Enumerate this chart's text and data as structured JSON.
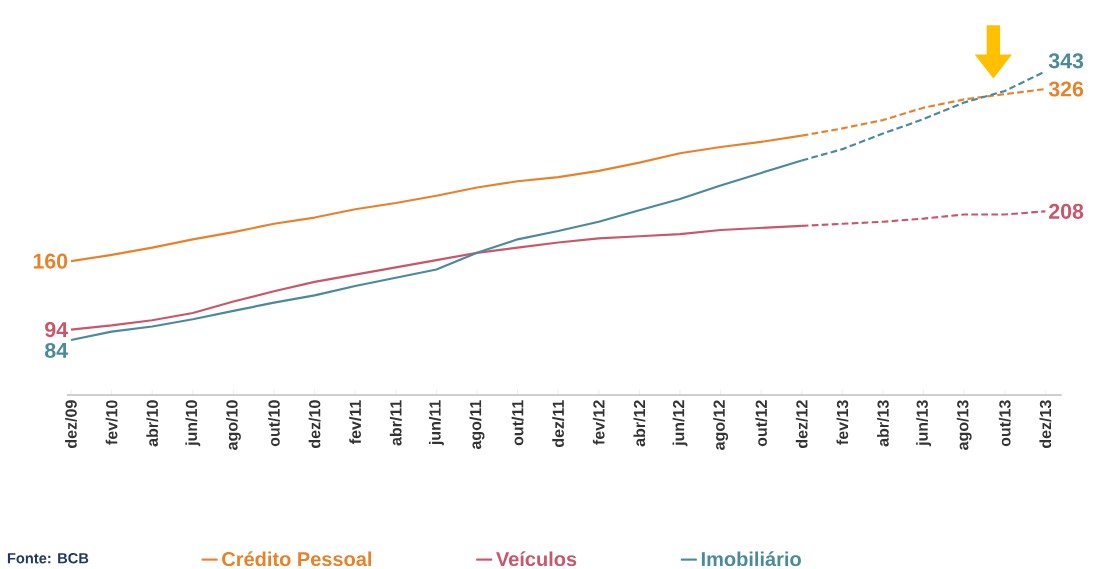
{
  "chart_data": {
    "type": "line",
    "categories": [
      "dez/09",
      "fev/10",
      "abr/10",
      "jun/10",
      "ago/10",
      "out/10",
      "dez/10",
      "fev/11",
      "abr/11",
      "jun/11",
      "ago/11",
      "out/11",
      "dez/11",
      "fev/12",
      "abr/12",
      "jun/12",
      "ago/12",
      "out/12",
      "dez/12",
      "fev/13",
      "abr/13",
      "jun/13",
      "ago/13",
      "out/13",
      "dez/13"
    ],
    "legend": "bottom",
    "marker": "none",
    "line_style": "solid",
    "grid": false,
    "annotations": [
      "Fonte: BCB"
    ],
    "series": [
      {
        "name": "Crédito Pessoal",
        "color": "#e8822a",
        "values": [
          160,
          166,
          173,
          181,
          188,
          196,
          202,
          210,
          216,
          223,
          231,
          237,
          241,
          247,
          255,
          264,
          270,
          275,
          281,
          null,
          null,
          null,
          null,
          null,
          null
        ],
        "value_labels": [
          "160",
          null,
          null,
          null,
          null,
          null,
          null,
          null,
          null,
          null,
          null,
          null,
          null,
          null,
          null,
          null,
          null,
          null,
          null,
          null,
          null,
          null,
          null,
          null,
          null
        ]
      },
      {
        "color": "#e8822a",
        "line_style": "dashed",
        "values": [
          null,
          null,
          null,
          null,
          null,
          null,
          null,
          null,
          null,
          null,
          null,
          null,
          null,
          null,
          null,
          null,
          null,
          null,
          281,
          288,
          296,
          308,
          316,
          321,
          326
        ],
        "value_labels": [
          null,
          null,
          null,
          null,
          null,
          null,
          null,
          null,
          null,
          null,
          null,
          null,
          null,
          null,
          null,
          null,
          null,
          null,
          null,
          null,
          null,
          null,
          null,
          null,
          "326"
        ]
      },
      {
        "name": "Veículos",
        "color": "#c9566a",
        "values": [
          94,
          98,
          103,
          110,
          121,
          131,
          140,
          147,
          154,
          161,
          168,
          173,
          178,
          182,
          184,
          186,
          190,
          192,
          194,
          null,
          null,
          null,
          null,
          null,
          null
        ],
        "value_labels": [
          "94",
          null,
          null,
          null,
          null,
          null,
          null,
          null,
          null,
          null,
          null,
          null,
          null,
          null,
          null,
          null,
          null,
          null,
          null,
          null,
          null,
          null,
          null,
          null,
          null
        ]
      },
      {
        "color": "#c9566a",
        "line_style": "dashed",
        "values": [
          null,
          null,
          null,
          null,
          null,
          null,
          null,
          null,
          null,
          null,
          null,
          null,
          null,
          null,
          null,
          null,
          null,
          null,
          194,
          196,
          198,
          201,
          205,
          205,
          208
        ],
        "value_labels": [
          null,
          null,
          null,
          null,
          null,
          null,
          null,
          null,
          null,
          null,
          null,
          null,
          null,
          null,
          null,
          null,
          null,
          null,
          null,
          null,
          null,
          null,
          null,
          null,
          "208"
        ]
      },
      {
        "name": "Imobiliário",
        "color": "#4a8a9b",
        "values": [
          84,
          92,
          97,
          104,
          112,
          120,
          127,
          136,
          144,
          152,
          168,
          181,
          189,
          198,
          209,
          220,
          233,
          245,
          257,
          null,
          null,
          null,
          null,
          null,
          null
        ],
        "value_labels": [
          "84",
          null,
          null,
          null,
          null,
          null,
          null,
          null,
          null,
          null,
          null,
          null,
          null,
          null,
          null,
          null,
          null,
          null,
          null,
          null,
          null,
          null,
          null,
          null,
          null
        ]
      },
      {
        "color": "#4a8a9b",
        "line_style": "dashed",
        "values": [
          null,
          null,
          null,
          null,
          null,
          null,
          null,
          null,
          null,
          null,
          null,
          null,
          null,
          null,
          null,
          null,
          null,
          null,
          257,
          268,
          283,
          297,
          313,
          324,
          343
        ],
        "value_labels": [
          null,
          null,
          null,
          null,
          null,
          null,
          null,
          null,
          null,
          null,
          null,
          null,
          null,
          null,
          null,
          null,
          null,
          null,
          null,
          null,
          null,
          null,
          null,
          null,
          "343"
        ]
      }
    ]
  }
}
